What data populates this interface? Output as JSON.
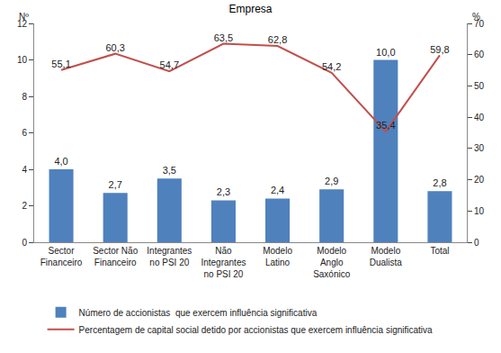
{
  "chart_data": {
    "type": "bar",
    "title": "Empresa",
    "categories": [
      "Sector Financeiro",
      "Sector Não Financeiro",
      "Integrantes no PSI 20",
      "Não Integrantes no PSI 20",
      "Modelo Latino",
      "Modelo Anglo Saxónico",
      "Modelo Dualista",
      "Total"
    ],
    "y_label": "Nº",
    "y2_label": "%",
    "ylim": [
      0,
      12
    ],
    "yticks": [
      0,
      2,
      4,
      6,
      8,
      10,
      12
    ],
    "y2lim": [
      0,
      70
    ],
    "y2ticks": [
      0,
      10,
      20,
      30,
      40,
      50,
      60,
      70
    ],
    "series": [
      {
        "name": "Número de accionistas  que exercem influência significativa",
        "type": "bar",
        "color": "#4f81bd",
        "values": [
          4.0,
          2.7,
          3.5,
          2.3,
          2.4,
          2.9,
          10.0,
          2.8
        ],
        "value_labels": [
          "4,0",
          "2,7",
          "3,5",
          "2,3",
          "2,4",
          "2,9",
          "10,0",
          "2,8"
        ]
      },
      {
        "name": "Percentagem de capital social detido por accionistas que exercem influência significativa",
        "type": "line",
        "axis": "y2",
        "color": "#c0504d",
        "values": [
          55.1,
          60.3,
          54.7,
          63.5,
          62.8,
          54.2,
          35.4,
          59.8
        ],
        "value_labels": [
          "55,1",
          "60,3",
          "54,7",
          "63,5",
          "62,8",
          "54,2",
          "35,4",
          "59,8"
        ]
      }
    ],
    "data_labels": true,
    "legend": "bottom",
    "grid": false
  }
}
